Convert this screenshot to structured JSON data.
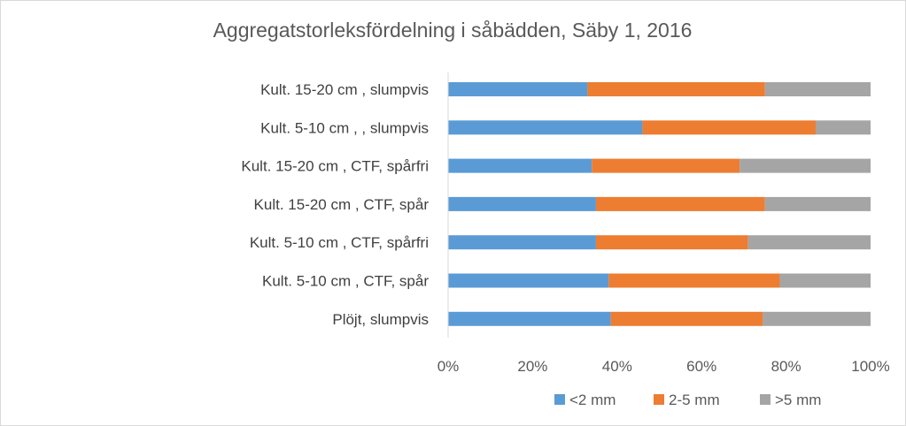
{
  "chart_data": {
    "type": "bar",
    "orientation": "horizontal",
    "stacked": "percent",
    "title": "Aggregatstorleksfördelning i såbädden, Säby 1, 2016",
    "xlabel": "",
    "ylabel": "",
    "categories": [
      "Kult. 15-20 cm ,  slumpvis",
      "Kult. 5-10 cm , ,  slumpvis",
      "Kult. 15-20 cm ,  CTF, spårfri",
      "Kult. 15-20 cm ,  CTF, spår",
      "Kult. 5-10 cm ,  CTF, spårfri",
      "Kult. 5-10 cm ,  CTF, spår",
      "Plöjt, slumpvis"
    ],
    "series": [
      {
        "name": "<2 mm",
        "color": "#5b9bd5",
        "values": [
          33,
          46,
          34,
          35,
          35,
          38,
          38.5
        ]
      },
      {
        "name": "2-5 mm",
        "color": "#ed7d31",
        "values": [
          42,
          41,
          35,
          40,
          36,
          40.5,
          36
        ]
      },
      {
        "name": ">5 mm",
        "color": "#a5a5a5",
        "values": [
          25,
          13,
          31,
          25,
          29,
          21.5,
          25.5
        ]
      }
    ],
    "xlim": [
      0,
      100
    ],
    "xticks": [
      "0%",
      "20%",
      "40%",
      "60%",
      "80%",
      "100%"
    ],
    "grid": false,
    "legend_position": "bottom"
  }
}
